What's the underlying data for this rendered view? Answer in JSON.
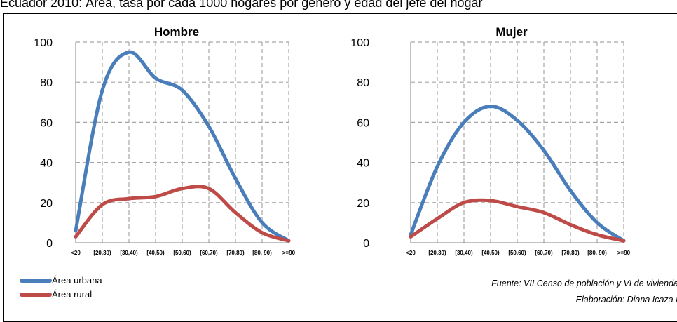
{
  "caption": "Ecuador 2010: Área, tasa por cada 1000 hogares por género y edad del jefe del hogar",
  "colors": {
    "urban": "#4a7ebb",
    "rural": "#be4b48",
    "grid": "#a6a6a6"
  },
  "legend": {
    "urban": "Área urbana",
    "rural": "Área rural"
  },
  "footer": {
    "source": "Fuente: VII Censo de población y VI de vivienda",
    "elaboration": "Elaboración: Diana Icaza M."
  },
  "chart_data": [
    {
      "type": "line",
      "title": "Hombre",
      "categories": [
        "<20",
        "[20,30)",
        "[30,40)",
        "[40,50)",
        "[50,60)",
        "[60,70)",
        "[70,80)",
        "[80, 90)",
        ">=90"
      ],
      "yticks": [
        0,
        20,
        40,
        60,
        80,
        100
      ],
      "ylim": [
        0,
        100
      ],
      "grid": true,
      "series": [
        {
          "name": "Área urbana",
          "values": [
            6,
            76,
            95,
            82,
            76,
            58,
            32,
            10,
            1
          ]
        },
        {
          "name": "Área rural",
          "values": [
            3,
            19,
            22,
            23,
            27,
            27,
            15,
            5,
            1
          ]
        }
      ]
    },
    {
      "type": "line",
      "title": "Mujer",
      "categories": [
        "<20",
        "[20,30)",
        "[30,40)",
        "[40,50)",
        "[50,60)",
        "[60,70)",
        "[70,80)",
        "[80, 90)",
        ">=90"
      ],
      "yticks": [
        0,
        20,
        40,
        60,
        80,
        100
      ],
      "ylim": [
        0,
        100
      ],
      "grid": true,
      "series": [
        {
          "name": "Área urbana",
          "values": [
            4,
            38,
            60,
            68,
            61,
            46,
            26,
            10,
            1
          ]
        },
        {
          "name": "Área rural",
          "values": [
            3,
            12,
            20,
            21,
            18,
            15,
            9,
            4,
            1
          ]
        }
      ]
    }
  ]
}
